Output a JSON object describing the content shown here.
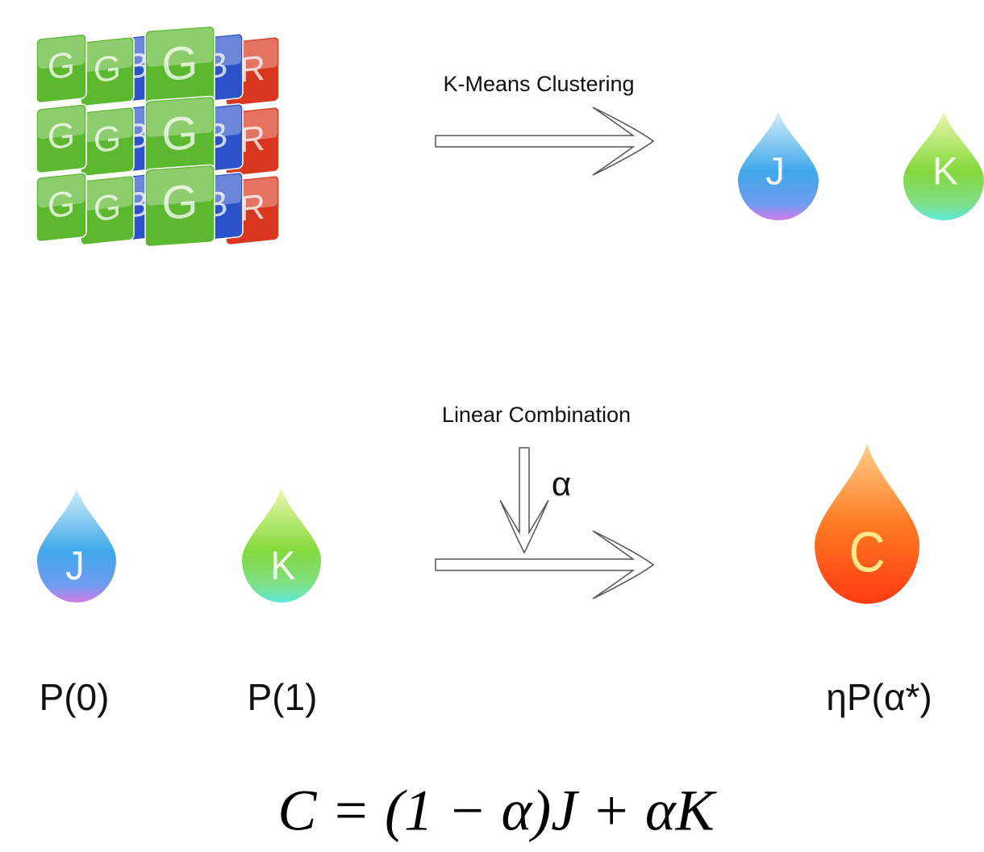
{
  "tiles": {
    "rows": [
      [
        {
          "letter": "G",
          "color": "#5cb82e"
        },
        {
          "letter": "G",
          "color": "#5cb82e"
        },
        {
          "letter": "B",
          "color": "#2b52c9"
        },
        {
          "letter": "G",
          "color": "#5cb82e"
        },
        {
          "letter": "B",
          "color": "#2b52c9"
        },
        {
          "letter": "R",
          "color": "#d9371f"
        }
      ],
      [
        {
          "letter": "G",
          "color": "#5cb82e"
        },
        {
          "letter": "G",
          "color": "#5cb82e"
        },
        {
          "letter": "B",
          "color": "#2b52c9"
        },
        {
          "letter": "G",
          "color": "#5cb82e"
        },
        {
          "letter": "B",
          "color": "#2b52c9"
        },
        {
          "letter": "R",
          "color": "#d9371f"
        }
      ],
      [
        {
          "letter": "G",
          "color": "#5cb82e"
        },
        {
          "letter": "G",
          "color": "#5cb82e"
        },
        {
          "letter": "B",
          "color": "#2b52c9"
        },
        {
          "letter": "G",
          "color": "#5cb82e"
        },
        {
          "letter": "B",
          "color": "#2b52c9"
        },
        {
          "letter": "R",
          "color": "#d9371f"
        }
      ]
    ]
  },
  "arrows": [
    {
      "label": "K-Means Clustering"
    },
    {
      "label": "Linear Combination",
      "parameter": "α"
    }
  ],
  "clusters": [
    {
      "label": "J"
    },
    {
      "label": "K"
    }
  ],
  "combination": {
    "inputs": [
      {
        "label": "J",
        "caption": "P(0)"
      },
      {
        "label": "K",
        "caption": "P(1)"
      }
    ],
    "output": {
      "label": "C",
      "caption": "ηP(α*)"
    }
  },
  "formula": "C = (1 − α)J + αK"
}
